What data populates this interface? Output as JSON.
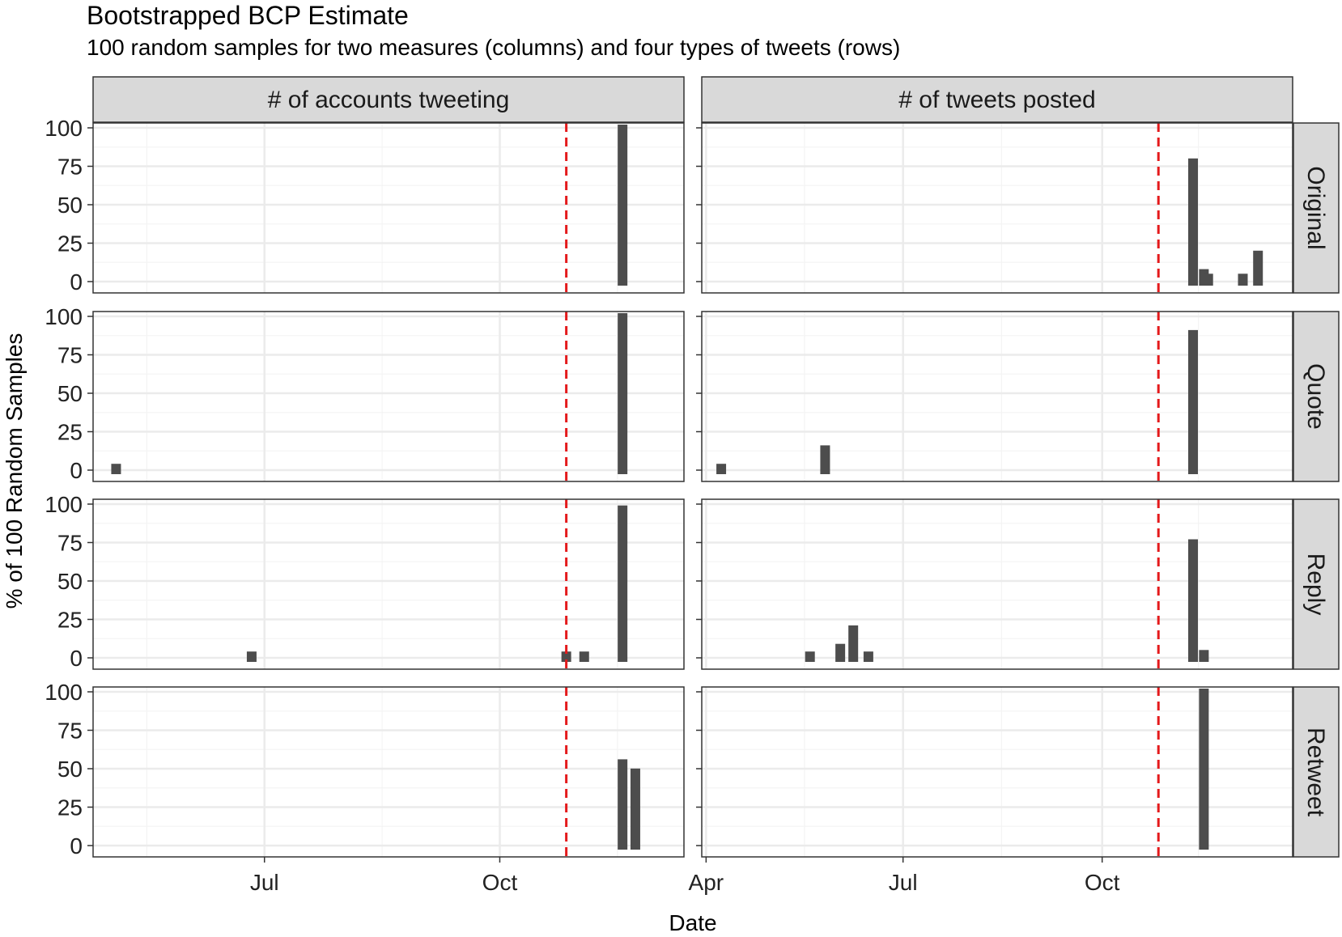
{
  "chart_data": {
    "type": "bar",
    "title": "Bootstrapped BCP Estimate",
    "subtitle": "100 random samples for two measures (columns) and four types of tweets (rows)",
    "xlabel": "Date",
    "ylabel": "% of 100 Random Samples",
    "ylim": [
      0,
      100
    ],
    "yticks": [
      0,
      25,
      50,
      75,
      100
    ],
    "grid": true,
    "columns": [
      "# of accounts tweeting",
      "# of tweets posted"
    ],
    "rows": [
      "Original",
      "Quote",
      "Reply",
      "Retweet"
    ],
    "reference_line_color": "#e41a1c",
    "bar_color": "#4d4d4d",
    "panels": [
      {
        "measure": "# of accounts tweeting",
        "xlim": [
          "2017-04-25",
          "2017-12-12"
        ],
        "xticks": [
          {
            "date": "2017-07-01",
            "label": "Jul"
          },
          {
            "date": "2017-10-01",
            "label": "Oct"
          }
        ],
        "reference_date": "2017-10-27",
        "facets": {
          "Original": [
            {
              "x": "2017-11-18",
              "y": 100
            }
          ],
          "Quote": [
            {
              "x": "2017-05-04",
              "y": 2
            },
            {
              "x": "2017-11-18",
              "y": 100
            }
          ],
          "Reply": [
            {
              "x": "2017-06-26",
              "y": 2
            },
            {
              "x": "2017-10-27",
              "y": 2
            },
            {
              "x": "2017-11-03",
              "y": 2
            },
            {
              "x": "2017-11-18",
              "y": 97
            }
          ],
          "Retweet": [
            {
              "x": "2017-11-18",
              "y": 54
            },
            {
              "x": "2017-11-23",
              "y": 48
            }
          ]
        }
      },
      {
        "measure": "# of tweets posted",
        "xlim": [
          "2017-03-30",
          "2017-12-28"
        ],
        "xticks": [
          {
            "date": "2017-04-01",
            "label": "Apr"
          },
          {
            "date": "2017-07-01",
            "label": "Jul"
          },
          {
            "date": "2017-10-01",
            "label": "Oct"
          }
        ],
        "reference_date": "2017-10-27",
        "facets": {
          "Original": [
            {
              "x": "2017-11-12",
              "y": 78
            },
            {
              "x": "2017-11-17",
              "y": 6
            },
            {
              "x": "2017-11-19",
              "y": 3
            },
            {
              "x": "2017-12-05",
              "y": 3
            },
            {
              "x": "2017-12-12",
              "y": 18
            }
          ],
          "Quote": [
            {
              "x": "2017-04-08",
              "y": 2
            },
            {
              "x": "2017-05-26",
              "y": 14
            },
            {
              "x": "2017-11-12",
              "y": 89
            }
          ],
          "Reply": [
            {
              "x": "2017-05-19",
              "y": 2
            },
            {
              "x": "2017-06-02",
              "y": 7
            },
            {
              "x": "2017-06-08",
              "y": 19
            },
            {
              "x": "2017-06-15",
              "y": 2
            },
            {
              "x": "2017-11-12",
              "y": 75
            },
            {
              "x": "2017-11-17",
              "y": 3
            }
          ],
          "Retweet": [
            {
              "x": "2017-11-17",
              "y": 100
            }
          ]
        }
      }
    ]
  }
}
